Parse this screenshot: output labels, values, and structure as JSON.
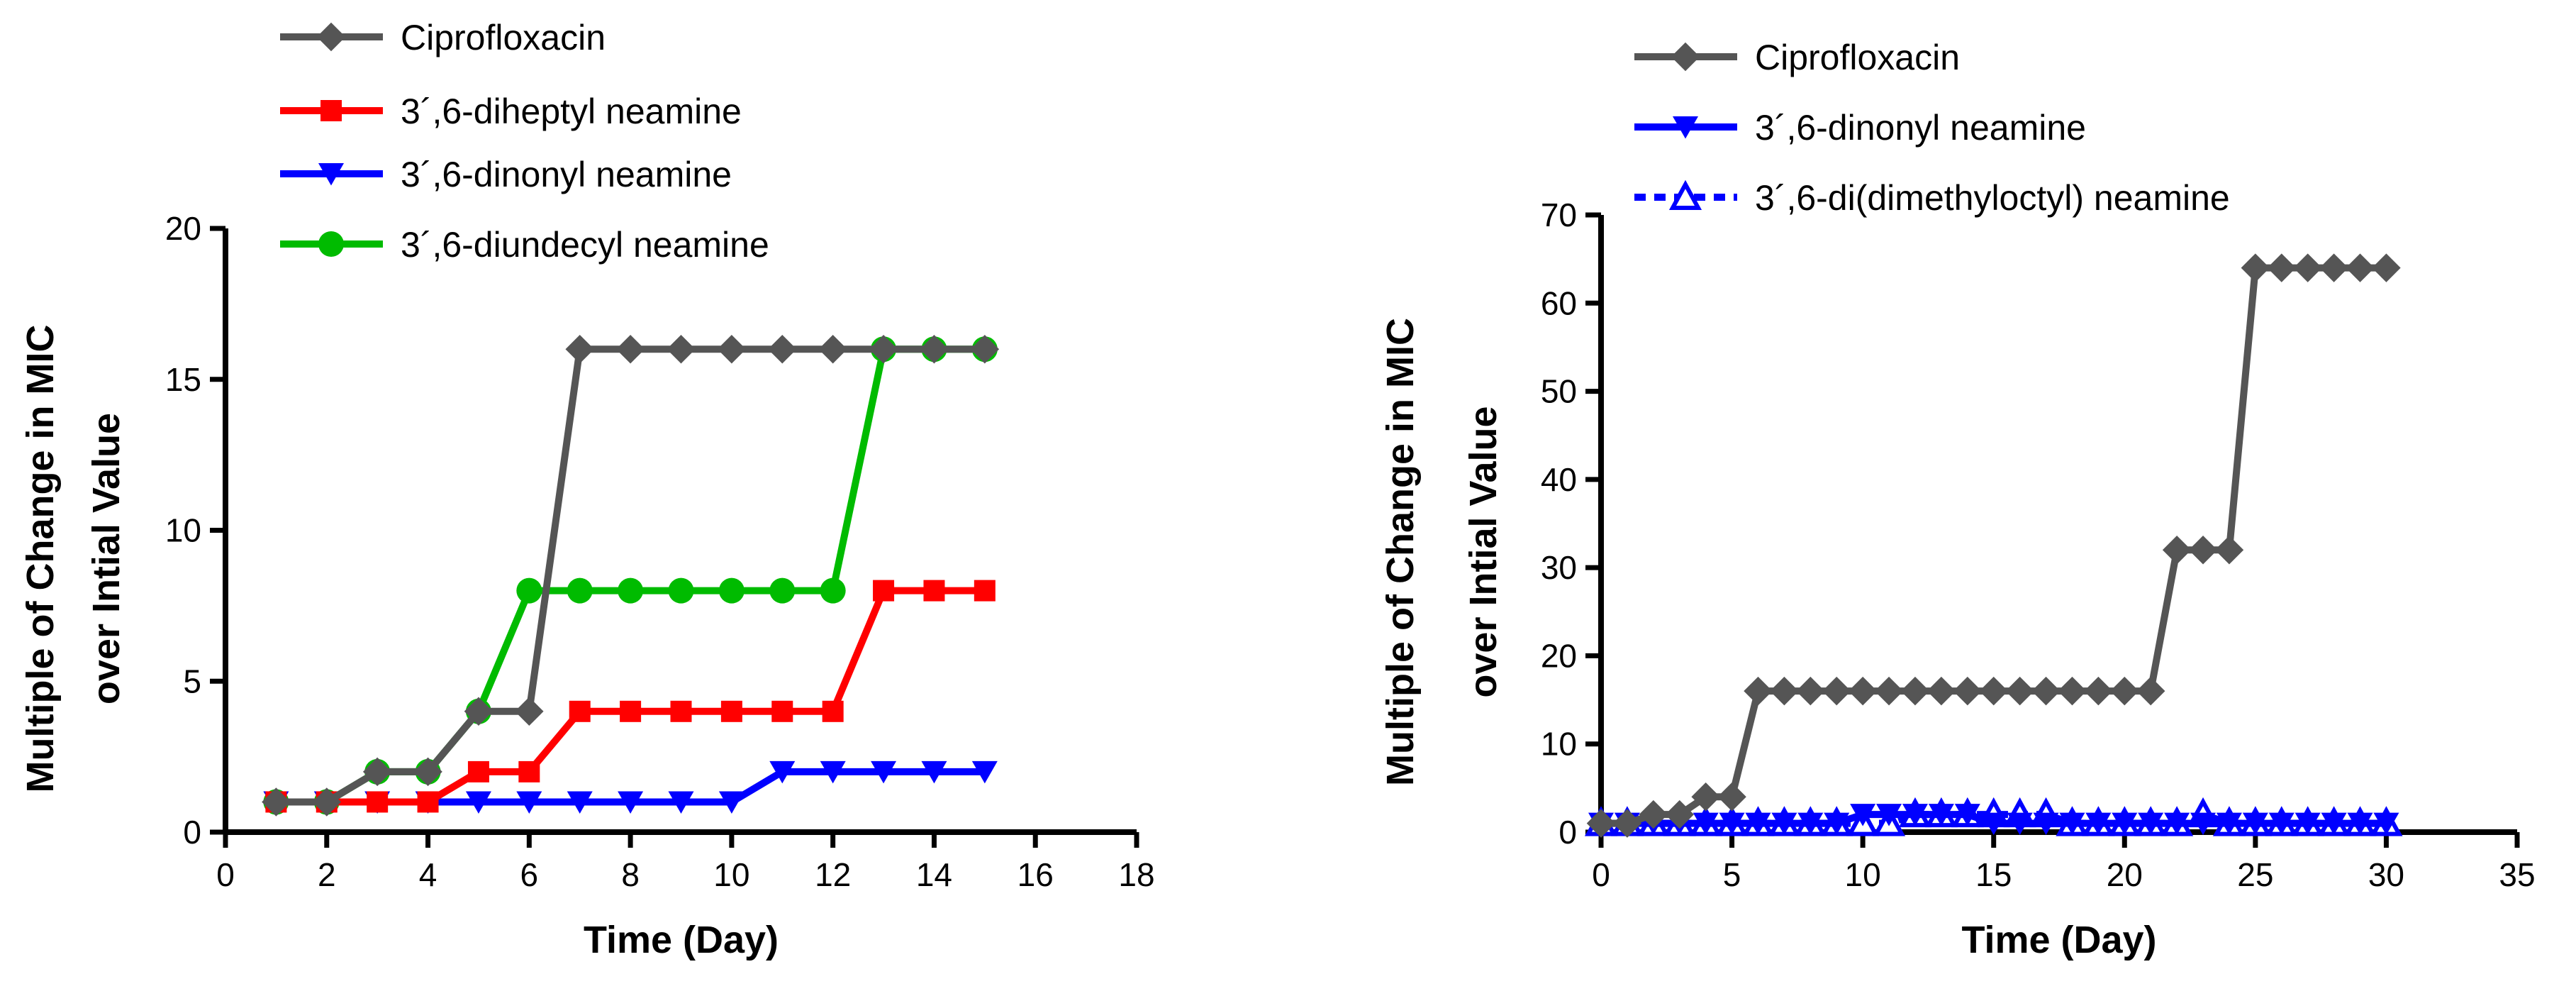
{
  "chart_data": [
    {
      "type": "line",
      "xlabel": "Time (Day)",
      "ylabel": "Multiple of Change in MIC",
      "ylabel2": "over Intial Value",
      "xlim": [
        0,
        18
      ],
      "ylim": [
        0,
        20
      ],
      "xticks": [
        0,
        2,
        4,
        6,
        8,
        10,
        12,
        14,
        16,
        18
      ],
      "yticks": [
        0,
        5,
        10,
        15,
        20
      ],
      "series": [
        {
          "name": "Ciprofloxacin",
          "color": "#555555",
          "marker": "diamond",
          "x": [
            1,
            2,
            3,
            4,
            5,
            6,
            7,
            8,
            9,
            10,
            11,
            12,
            13,
            14,
            15
          ],
          "y": [
            1,
            1,
            2,
            2,
            4,
            4,
            16,
            16,
            16,
            16,
            16,
            16,
            16,
            16,
            16
          ]
        },
        {
          "name": "3´,6-diheptyl neamine",
          "color": "#ff0000",
          "marker": "square",
          "x": [
            1,
            2,
            3,
            4,
            5,
            6,
            7,
            8,
            9,
            10,
            11,
            12,
            13,
            14,
            15
          ],
          "y": [
            1,
            1,
            1,
            1,
            2,
            2,
            4,
            4,
            4,
            4,
            4,
            4,
            8,
            8,
            8
          ]
        },
        {
          "name": "3´,6-dinonyl neamine",
          "color": "#0000ff",
          "marker": "triangle-down",
          "x": [
            1,
            2,
            3,
            4,
            5,
            6,
            7,
            8,
            9,
            10,
            11,
            12,
            13,
            14,
            15
          ],
          "y": [
            1,
            1,
            1,
            1,
            1,
            1,
            1,
            1,
            1,
            1,
            2,
            2,
            2,
            2,
            2
          ]
        },
        {
          "name": "3´,6-diundecyl neamine",
          "color": "#00bb00",
          "marker": "circle",
          "x": [
            1,
            2,
            3,
            4,
            5,
            6,
            7,
            8,
            9,
            10,
            11,
            12,
            13,
            14,
            15
          ],
          "y": [
            1,
            1,
            2,
            2,
            4,
            8,
            8,
            8,
            8,
            8,
            8,
            8,
            16,
            16,
            16
          ]
        }
      ]
    },
    {
      "type": "line",
      "xlabel": "Time (Day)",
      "ylabel": "Multiple of Change in MIC",
      "ylabel2": "over Intial Value",
      "xlim": [
        0,
        35
      ],
      "ylim": [
        0,
        70
      ],
      "xticks": [
        0,
        5,
        10,
        15,
        20,
        25,
        30,
        35
      ],
      "yticks": [
        0,
        10,
        20,
        30,
        40,
        50,
        60,
        70
      ],
      "series": [
        {
          "name": "Ciprofloxacin",
          "color": "#555555",
          "marker": "diamond",
          "x": [
            0,
            1,
            2,
            3,
            4,
            5,
            6,
            7,
            8,
            9,
            10,
            11,
            12,
            13,
            14,
            15,
            16,
            17,
            18,
            19,
            20,
            21,
            22,
            23,
            24,
            25,
            26,
            27,
            28,
            29,
            30
          ],
          "y": [
            1,
            1,
            2,
            2,
            4,
            4,
            16,
            16,
            16,
            16,
            16,
            16,
            16,
            16,
            16,
            16,
            16,
            16,
            16,
            16,
            16,
            16,
            32,
            32,
            32,
            64,
            64,
            64,
            64,
            64,
            64
          ]
        },
        {
          "name": "3´,6-dinonyl neamine",
          "color": "#0000ff",
          "marker": "triangle-down",
          "x": [
            0,
            1,
            2,
            3,
            4,
            5,
            6,
            7,
            8,
            9,
            10,
            11,
            12,
            13,
            14,
            15,
            16,
            17,
            18,
            19,
            20,
            21,
            22,
            23,
            24,
            25,
            26,
            27,
            28,
            29,
            30
          ],
          "y": [
            1,
            1,
            1,
            1,
            1,
            1,
            1,
            1,
            1,
            1,
            2,
            2,
            2,
            2,
            2,
            1,
            1,
            1,
            1,
            1,
            1,
            1,
            1,
            1,
            1,
            1,
            1,
            1,
            1,
            1,
            1
          ]
        },
        {
          "name": "3´,6-di(dimethyloctyl) neamine",
          "color": "#0000ff",
          "marker": "triangle-up-open",
          "dashed": true,
          "x": [
            0,
            1,
            2,
            3,
            4,
            5,
            6,
            7,
            8,
            9,
            10,
            11,
            12,
            13,
            14,
            15,
            16,
            17,
            18,
            19,
            20,
            21,
            22,
            23,
            24,
            25,
            26,
            27,
            28,
            29,
            30
          ],
          "y": [
            1,
            1,
            1,
            1,
            1,
            1,
            1,
            1,
            1,
            1,
            1,
            1,
            2,
            2,
            2,
            2,
            2,
            2,
            1,
            1,
            1,
            1,
            1,
            2,
            1,
            1,
            1,
            1,
            1,
            1,
            1
          ]
        }
      ]
    }
  ]
}
